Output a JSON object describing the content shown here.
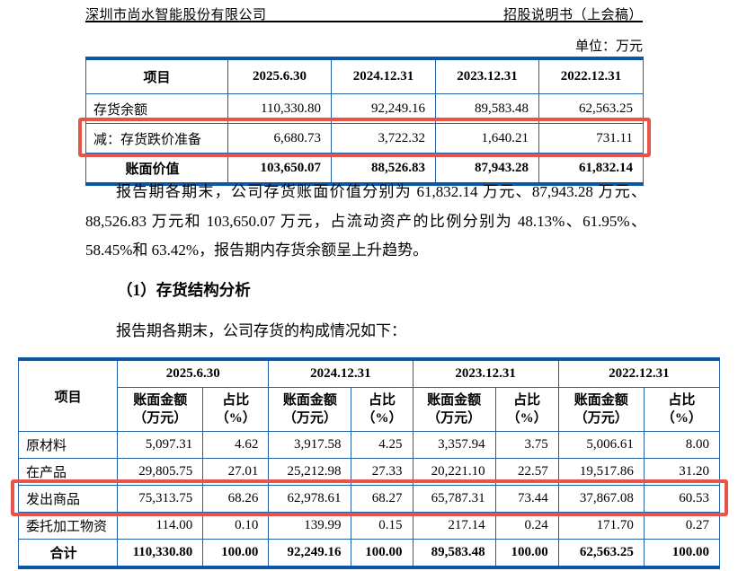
{
  "header": {
    "company": "深圳市尚水智能股份有限公司",
    "doc_type": "招股说明书（上会稿）"
  },
  "unit_note": "单位：万元",
  "colors": {
    "table_border_thick": "#0b57a6",
    "table_border_thin": "#2263a8",
    "highlight_box": "#e9544a"
  },
  "summary_table": {
    "columns": [
      "项目",
      "2025.6.30",
      "2024.12.31",
      "2023.12.31",
      "2022.12.31"
    ],
    "rows": [
      {
        "label": "存货余额",
        "values": [
          "110,330.80",
          "92,249.16",
          "89,583.48",
          "62,563.25"
        ],
        "style": "normal",
        "highlight": false
      },
      {
        "label": "减：存货跌价准备",
        "values": [
          "6,680.73",
          "3,722.32",
          "1,640.21",
          "731.11"
        ],
        "style": "normal",
        "highlight": true
      },
      {
        "label": "账面价值",
        "values": [
          "103,650.07",
          "88,526.83",
          "87,943.28",
          "61,832.14"
        ],
        "style": "total",
        "highlight": false
      }
    ]
  },
  "paragraph_1": "报告期各期末，公司存货账面价值分别为 61,832.14 万元、87,943.28 万元、88,526.83 万元和 103,650.07 万元，占流动资产的比例分别为 48.13%、61.95%、58.45%和 63.42%，报告期内存货余额呈上升趋势。",
  "section_heading": "（1）存货结构分析",
  "paragraph_2": "报告期各期末，公司存货的构成情况如下：",
  "structure_table": {
    "item_column": "项目",
    "periods": [
      "2025.6.30",
      "2024.12.31",
      "2023.12.31",
      "2022.12.31"
    ],
    "amount_header": "账面金额\n（万元）",
    "ratio_header": "占比\n（%）",
    "rows": [
      {
        "label": "原材料",
        "values": [
          "5,097.31",
          "4.62",
          "3,917.58",
          "4.25",
          "3,357.94",
          "3.75",
          "5,006.61",
          "8.00"
        ],
        "style": "normal",
        "highlight": false
      },
      {
        "label": "在产品",
        "values": [
          "29,805.75",
          "27.01",
          "25,212.98",
          "27.33",
          "20,221.10",
          "22.57",
          "19,517.86",
          "31.20"
        ],
        "style": "normal",
        "highlight": false
      },
      {
        "label": "发出商品",
        "values": [
          "75,313.75",
          "68.26",
          "62,978.61",
          "68.27",
          "65,787.31",
          "73.44",
          "37,867.08",
          "60.53"
        ],
        "style": "normal",
        "highlight": true
      },
      {
        "label": "委托加工物资",
        "values": [
          "114.00",
          "0.10",
          "139.99",
          "0.15",
          "217.14",
          "0.24",
          "171.70",
          "0.27"
        ],
        "style": "normal",
        "highlight": false
      },
      {
        "label": "合计",
        "values": [
          "110,330.80",
          "100.00",
          "92,249.16",
          "100.00",
          "89,583.48",
          "100.00",
          "62,563.25",
          "100.00"
        ],
        "style": "total",
        "highlight": false
      }
    ]
  }
}
